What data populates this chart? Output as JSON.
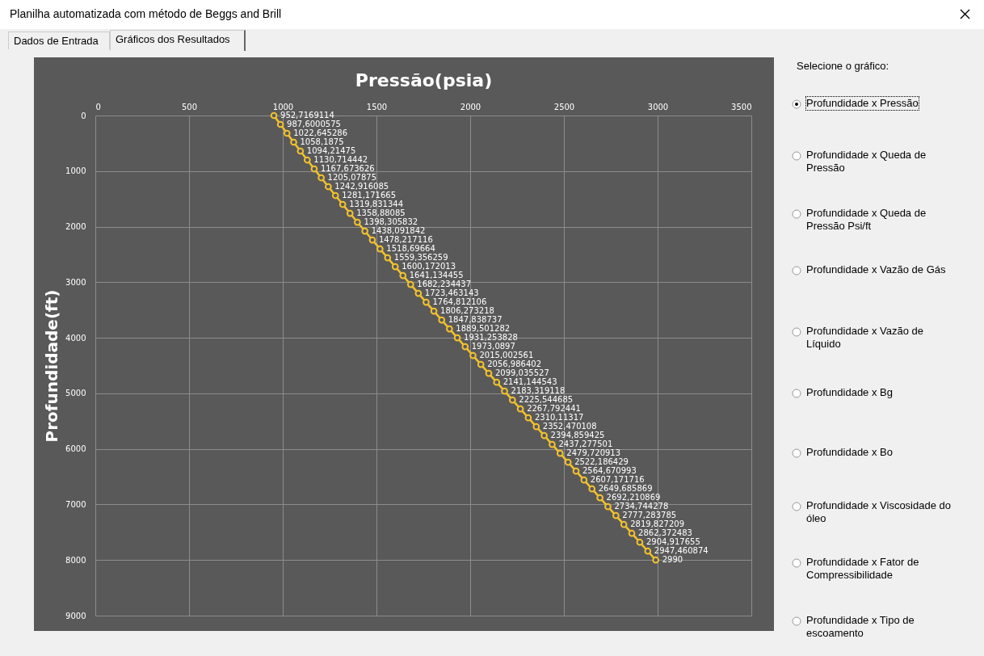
{
  "chart_data": {
    "type": "line",
    "title": "Planilha automatizada com método de Beggs and Brill",
    "xlabel": "Pressão(psia)",
    "ylabel": "Profundidade(ft)",
    "annotations": [
      "Dados de Entrada",
      "Gráficos dos Resultados",
      "Selecione o gráfico:",
      "Profundidade x Pressão",
      "Profundidade x Queda de Pressão",
      "Profundidade x Queda de Pressão Psi/ft",
      "Profundidade x Vazão de Gás",
      "Profundidade x Vazão de Líquido",
      "Profundidade x Bg",
      "Profundidade x Bo",
      "Profundidade x Viscosidade do óleo",
      "Profundidade x Fator de Compressibilidade",
      "Profundidade x Tipo de escoamento",
      {
        "text": "952,7169114",
        "x": 952.7169114,
        "y": 0
      },
      {
        "text": "987,6000575",
        "x": 987.6000575,
        "y": 160
      },
      {
        "text": "1022,645286",
        "x": 1022.645286,
        "y": 320
      },
      {
        "text": "1058,1875",
        "x": 1058.1875,
        "y": 480
      },
      {
        "text": "1094,21475",
        "x": 1094.21475,
        "y": 640
      },
      {
        "text": "1130,714442",
        "x": 1130.714442,
        "y": 800
      },
      {
        "text": "1167,673626",
        "x": 1167.673626,
        "y": 960
      },
      {
        "text": "1205,07875",
        "x": 1205.07875,
        "y": 1120
      },
      {
        "text": "1242,916085",
        "x": 1242.916085,
        "y": 1280
      },
      {
        "text": "1281,171665",
        "x": 1281.171665,
        "y": 1440
      },
      {
        "text": "1319,831344",
        "x": 1319.831344,
        "y": 1600
      },
      {
        "text": "1358,88085",
        "x": 1358.88085,
        "y": 1760
      },
      {
        "text": "1398,305832",
        "x": 1398.305832,
        "y": 1920
      },
      {
        "text": "1438,091842",
        "x": 1438.091842,
        "y": 2080
      },
      {
        "text": "1478,217116",
        "x": 1478.217116,
        "y": 2240
      },
      {
        "text": "1518,69664",
        "x": 1518.69664,
        "y": 2400
      },
      {
        "text": "1559,356259",
        "x": 1559.356259,
        "y": 2560
      },
      {
        "text": "1600,172013",
        "x": 1600.172013,
        "y": 2720
      },
      {
        "text": "1641,134455",
        "x": 1641.134455,
        "y": 2880
      },
      {
        "text": "1682,234437",
        "x": 1682.234437,
        "y": 3040
      },
      {
        "text": "1723,463143",
        "x": 1723.463143,
        "y": 3200
      },
      {
        "text": "1764,812106",
        "x": 1764.812106,
        "y": 3360
      },
      {
        "text": "1806,273218",
        "x": 1806.273218,
        "y": 3520
      },
      {
        "text": "1847,838737",
        "x": 1847.838737,
        "y": 3680
      },
      {
        "text": "1889,501282",
        "x": 1889.501282,
        "y": 3840
      },
      {
        "text": "1931,253828",
        "x": 1931.253828,
        "y": 4000
      },
      {
        "text": "1973,0897",
        "x": 1973.0897,
        "y": 4160
      },
      {
        "text": "2015,002561",
        "x": 2015.002561,
        "y": 4320
      },
      {
        "text": "2056,986402",
        "x": 2056.986402,
        "y": 4480
      },
      {
        "text": "2099,035527",
        "x": 2099.035527,
        "y": 4640
      },
      {
        "text": "2141,144543",
        "x": 2141.144543,
        "y": 4800
      },
      {
        "text": "2183,319118",
        "x": 2183.319118,
        "y": 4960
      },
      {
        "text": "2225,544685",
        "x": 2225.544685,
        "y": 5120
      },
      {
        "text": "2267,792441",
        "x": 2267.792441,
        "y": 5280
      },
      {
        "text": "2310,11317",
        "x": 2310.11317,
        "y": 5440
      },
      {
        "text": "2352,470108",
        "x": 2352.470108,
        "y": 5600
      },
      {
        "text": "2394,859425",
        "x": 2394.859425,
        "y": 5760
      },
      {
        "text": "2437,277501",
        "x": 2437.277501,
        "y": 5920
      },
      {
        "text": "2479,720913",
        "x": 2479.720913,
        "y": 6080
      },
      {
        "text": "2522,186429",
        "x": 2522.186429,
        "y": 6240
      },
      {
        "text": "2564,670993",
        "x": 2564.670993,
        "y": 6400
      },
      {
        "text": "2607,171716",
        "x": 2607.171716,
        "y": 6560
      },
      {
        "text": "2649,685869",
        "x": 2649.685869,
        "y": 6720
      },
      {
        "text": "2692,210869",
        "x": 2692.210869,
        "y": 6880
      },
      {
        "text": "2734,744278",
        "x": 2734.744278,
        "y": 7040
      },
      {
        "text": "2777,283785",
        "x": 2777.283785,
        "y": 7200
      },
      {
        "text": "2819,827209",
        "x": 2819.827209,
        "y": 7360
      },
      {
        "text": "2862,372483",
        "x": 2862.372483,
        "y": 7520
      },
      {
        "text": "2904,917655",
        "x": 2904.917655,
        "y": 7680
      },
      {
        "text": "2947,460874",
        "x": 2947.460874,
        "y": 7840
      },
      {
        "text": "2990",
        "x": 2990,
        "y": 8000
      }
    ],
    "xlim": [
      0,
      3500
    ],
    "xticks": [
      0,
      500,
      1000,
      1500,
      2000,
      2500,
      3000,
      3500
    ],
    "ylim": [
      9000,
      0
    ],
    "yticks": [
      0,
      1000,
      2000,
      3000,
      4000,
      5000,
      6000,
      7000,
      8000,
      9000
    ],
    "grid": true,
    "marker": "circle",
    "line_style": "solid",
    "series": [
      {
        "color": "#f2c12e",
        "x": [
          952.7169114,
          987.6000575,
          1022.645286,
          1058.1875,
          1094.21475,
          1130.714442,
          1167.673626,
          1205.07875,
          1242.916085,
          1281.171665,
          1319.831344,
          1358.88085,
          1398.305832,
          1438.091842,
          1478.217116,
          1518.69664,
          1559.356259,
          1600.172013,
          1641.134455,
          1682.234437,
          1723.463143,
          1764.812106,
          1806.273218,
          1847.838737,
          1889.501282,
          1931.253828,
          1973.0897,
          2015.002561,
          2056.986402,
          2099.035527,
          2141.144543,
          2183.319118,
          2225.544685,
          2267.792441,
          2310.11317,
          2352.470108,
          2394.859425,
          2437.277501,
          2479.720913,
          2522.186429,
          2564.670993,
          2607.171716,
          2649.685869,
          2692.210869,
          2734.744278,
          2777.283785,
          2819.827209,
          2862.372483,
          2904.917655,
          2947.460874,
          2990
        ],
        "values": [
          0,
          160,
          320,
          480,
          640,
          800,
          960,
          1120,
          1280,
          1440,
          1600,
          1760,
          1920,
          2080,
          2240,
          2400,
          2560,
          2720,
          2880,
          3040,
          3200,
          3360,
          3520,
          3680,
          3840,
          4000,
          4160,
          4320,
          4480,
          4640,
          4800,
          4960,
          5120,
          5280,
          5440,
          5600,
          5760,
          5920,
          6080,
          6240,
          6400,
          6560,
          6720,
          6880,
          7040,
          7200,
          7360,
          7520,
          7680,
          7840,
          8000
        ]
      }
    ]
  }
}
